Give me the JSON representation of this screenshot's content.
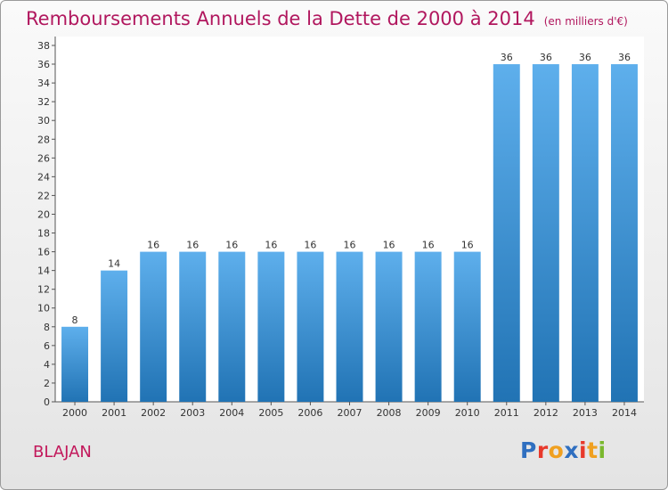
{
  "title": "Remboursements Annuels de la Dette de 2000 à 2014",
  "unit": "(en milliers d'€)",
  "commune": "BLAJAN",
  "brand": {
    "text": "Proxiti",
    "letter_colors": [
      "#2f6fc0",
      "#e8392b",
      "#f0a020",
      "#2f6fc0",
      "#e8392b",
      "#f0a020",
      "#7ab82e"
    ]
  },
  "colors": {
    "bar_top": "#5eafec",
    "bar_bottom": "#2173b4",
    "title": "#b1175e"
  },
  "chart_data": {
    "type": "bar",
    "title": "Remboursements Annuels de la Dette de 2000 à 2014",
    "categories": [
      "2000",
      "2001",
      "2002",
      "2003",
      "2004",
      "2005",
      "2006",
      "2007",
      "2008",
      "2009",
      "2010",
      "2011",
      "2012",
      "2013",
      "2014"
    ],
    "values": [
      8,
      14,
      16,
      16,
      16,
      16,
      16,
      16,
      16,
      16,
      16,
      36,
      36,
      36,
      36
    ],
    "ylim": [
      0,
      38
    ],
    "ytick_step": 2,
    "grid": false,
    "legend": "none"
  }
}
